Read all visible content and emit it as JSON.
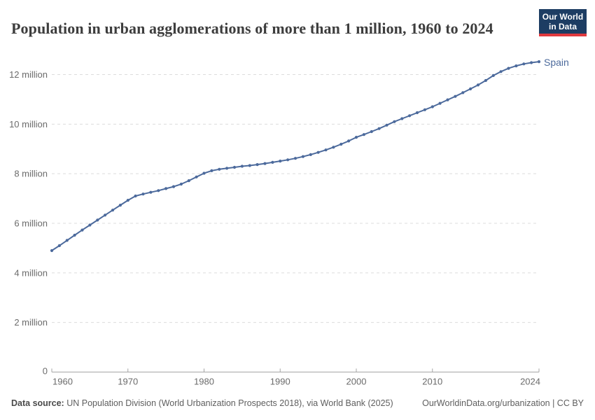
{
  "header": {
    "title": "Population in urban agglomerations of more than 1 million, 1960 to 2024",
    "logo": {
      "line1": "Our World",
      "line2": "in Data",
      "bg_color": "#1d3d63",
      "accent_color": "#e0393e"
    }
  },
  "chart_data": {
    "type": "line",
    "title": "Population in urban agglomerations of more than 1 million, 1960 to 2024",
    "xlabel": "",
    "ylabel": "",
    "values_unit": "millions of people",
    "xlim": [
      1960,
      2024
    ],
    "ylim_millions": [
      0,
      12.6
    ],
    "grid": "horizontal dashed",
    "legend_position": "end-of-line label",
    "x_ticks": [
      "1960",
      "1970",
      "1980",
      "1990",
      "2000",
      "2010",
      "2024"
    ],
    "y_ticks": [
      {
        "millions": 0,
        "label": "0"
      },
      {
        "millions": 2,
        "label": "2 million"
      },
      {
        "millions": 4,
        "label": "4 million"
      },
      {
        "millions": 6,
        "label": "6 million"
      },
      {
        "millions": 8,
        "label": "8 million"
      },
      {
        "millions": 10,
        "label": "10 million"
      },
      {
        "millions": 12,
        "label": "12 million"
      }
    ],
    "series": [
      {
        "name": "Spain",
        "color": "#4c6a9c",
        "years": [
          1960,
          1961,
          1962,
          1963,
          1964,
          1965,
          1966,
          1967,
          1968,
          1969,
          1970,
          1971,
          1972,
          1973,
          1974,
          1975,
          1976,
          1977,
          1978,
          1979,
          1980,
          1981,
          1982,
          1983,
          1984,
          1985,
          1986,
          1987,
          1988,
          1989,
          1990,
          1991,
          1992,
          1993,
          1994,
          1995,
          1996,
          1997,
          1998,
          1999,
          2000,
          2001,
          2002,
          2003,
          2004,
          2005,
          2006,
          2007,
          2008,
          2009,
          2010,
          2011,
          2012,
          2013,
          2014,
          2015,
          2016,
          2017,
          2018,
          2019,
          2020,
          2021,
          2022,
          2023,
          2024
        ],
        "values_millions": [
          4.9,
          5.1,
          5.31,
          5.52,
          5.73,
          5.93,
          6.13,
          6.33,
          6.53,
          6.73,
          6.93,
          7.1,
          7.18,
          7.25,
          7.32,
          7.4,
          7.48,
          7.58,
          7.72,
          7.87,
          8.02,
          8.12,
          8.18,
          8.22,
          8.26,
          8.3,
          8.33,
          8.37,
          8.41,
          8.46,
          8.51,
          8.56,
          8.62,
          8.69,
          8.77,
          8.86,
          8.96,
          9.07,
          9.19,
          9.32,
          9.47,
          9.58,
          9.7,
          9.82,
          9.96,
          10.1,
          10.22,
          10.34,
          10.46,
          10.58,
          10.7,
          10.84,
          10.98,
          11.12,
          11.27,
          11.42,
          11.58,
          11.76,
          11.96,
          12.12,
          12.25,
          12.35,
          12.43,
          12.48,
          12.52
        ]
      }
    ]
  },
  "footer": {
    "source_label": "Data source:",
    "source_text": "UN Population Division (World Urbanization Prospects 2018), via World Bank (2025)",
    "link_text": "OurWorldinData.org/urbanization | CC BY"
  }
}
